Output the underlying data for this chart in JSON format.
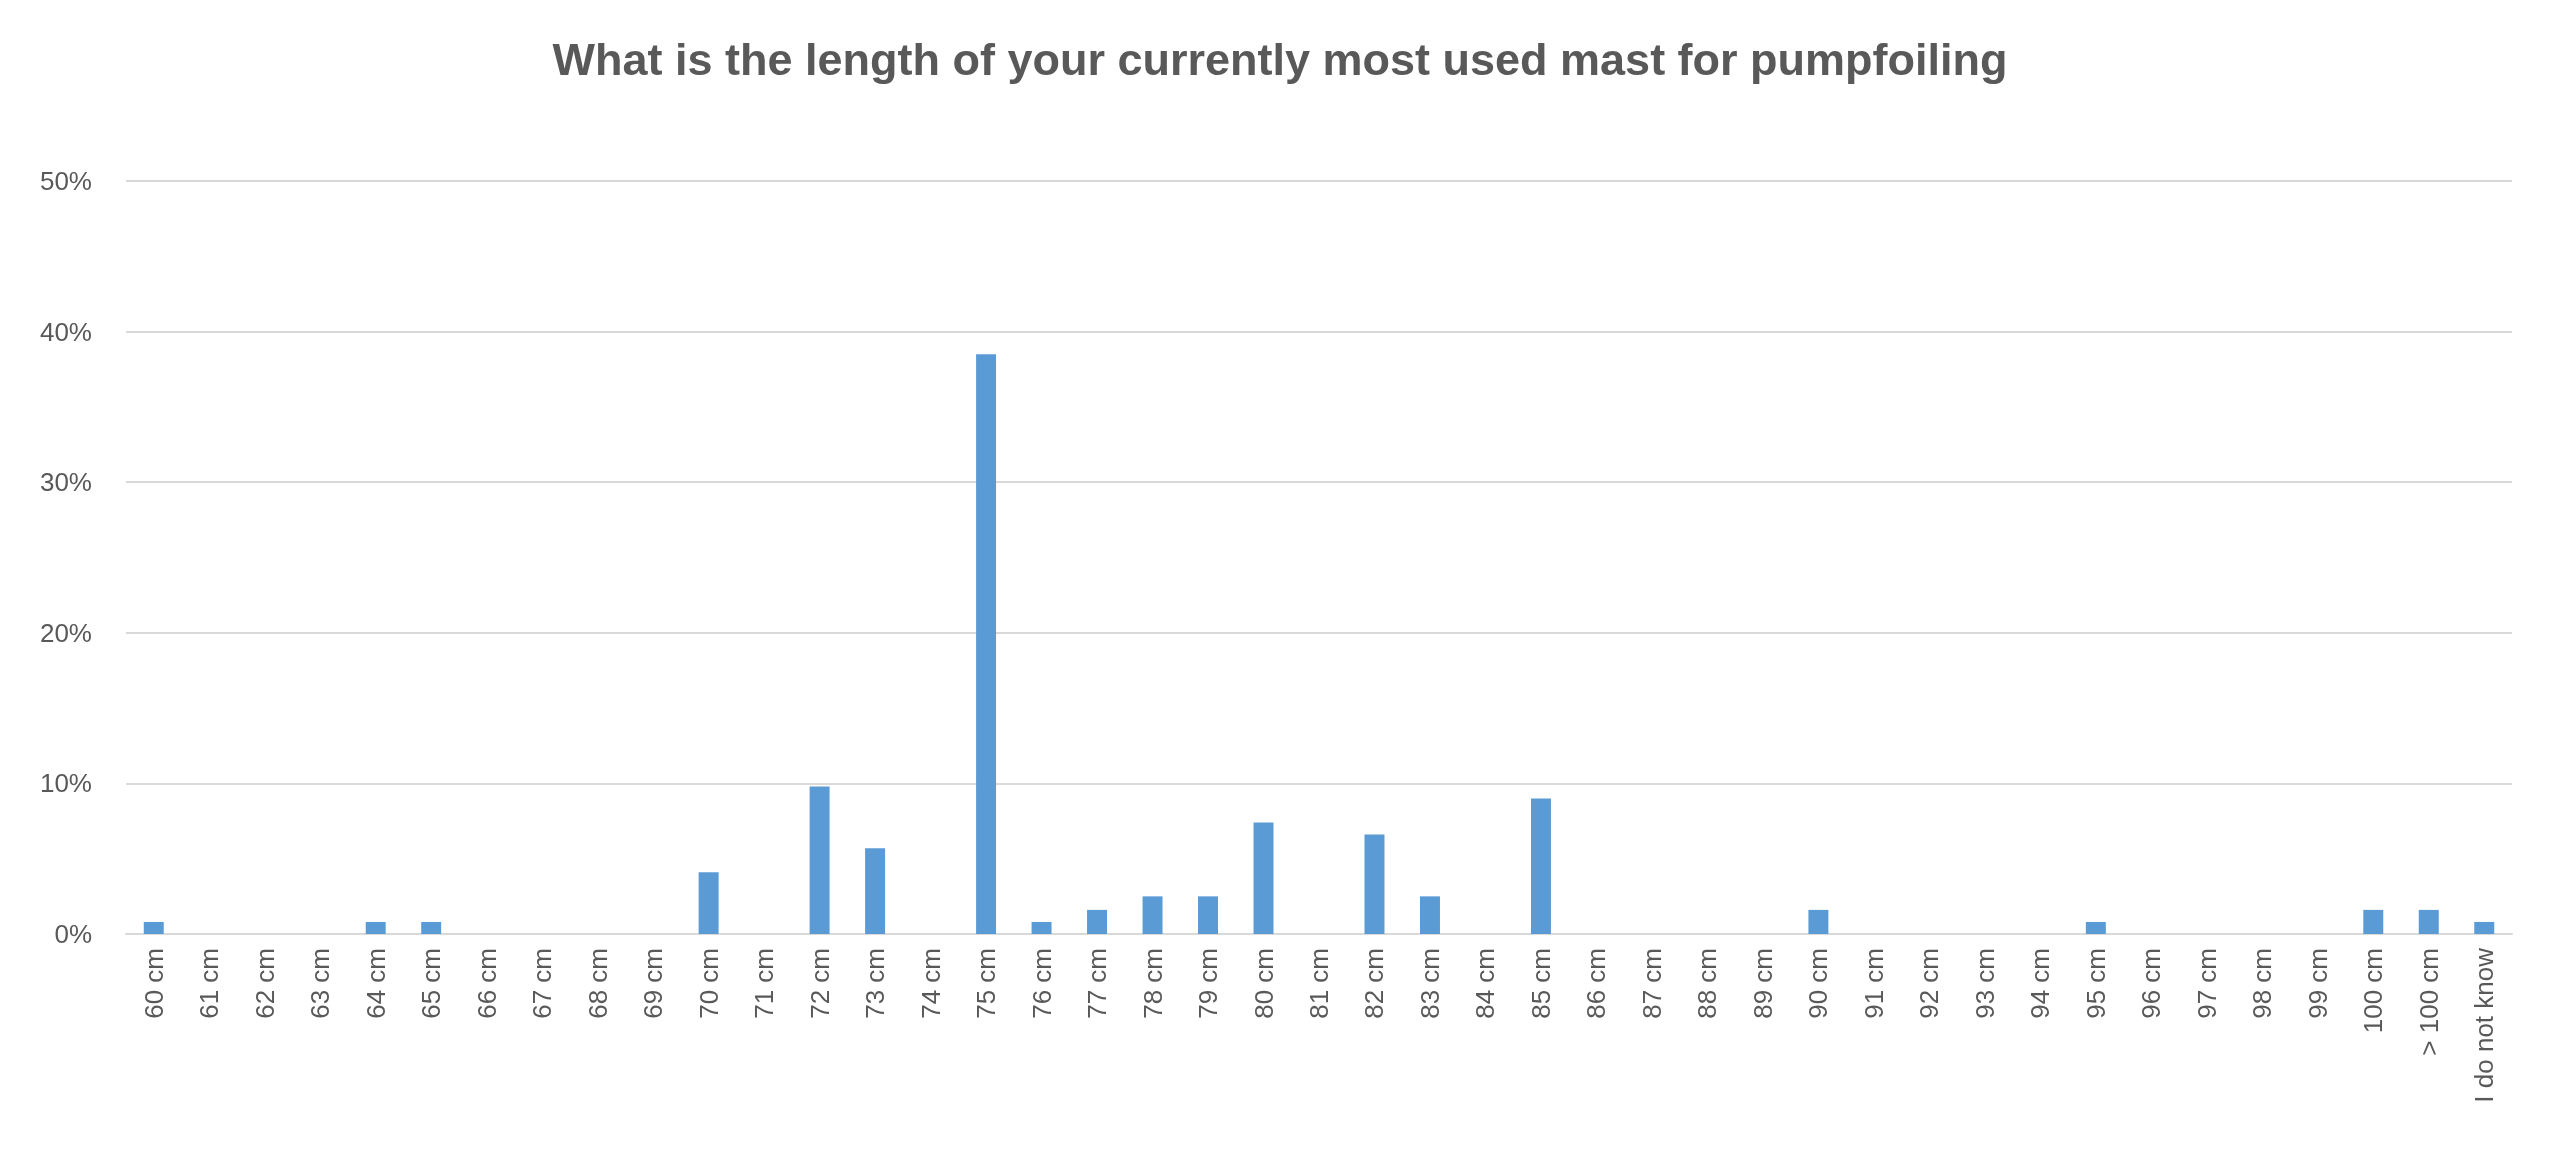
{
  "chart_data": {
    "type": "bar",
    "title": "What is the length of your currently most used mast for pumpfoiling",
    "categories": [
      "60 cm",
      "61 cm",
      "62 cm",
      "63 cm",
      "64 cm",
      "65 cm",
      "66 cm",
      "67 cm",
      "68 cm",
      "69 cm",
      "70 cm",
      "71 cm",
      "72 cm",
      "73 cm",
      "74 cm",
      "75 cm",
      "76 cm",
      "77 cm",
      "78 cm",
      "79 cm",
      "80 cm",
      "81 cm",
      "82 cm",
      "83 cm",
      "84 cm",
      "85 cm",
      "86 cm",
      "87 cm",
      "88 cm",
      "89 cm",
      "90 cm",
      "91 cm",
      "92 cm",
      "93 cm",
      "94 cm",
      "95 cm",
      "96 cm",
      "97 cm",
      "98 cm",
      "99 cm",
      "100 cm",
      "> 100 cm",
      "I do not know"
    ],
    "values": [
      0.8,
      0,
      0,
      0,
      0.8,
      0.8,
      0,
      0,
      0,
      0,
      4.1,
      0,
      9.8,
      5.7,
      0,
      38.5,
      0.8,
      1.6,
      2.5,
      2.5,
      7.4,
      0,
      6.6,
      2.5,
      0,
      9.0,
      0,
      0,
      0,
      0,
      1.6,
      0,
      0,
      0,
      0,
      0.8,
      0,
      0,
      0,
      0,
      1.6,
      1.6,
      0.8
    ],
    "color": "#5b9bd5",
    "ylim": [
      0,
      50
    ],
    "yticks": [
      {
        "value": 0,
        "label": "0%"
      },
      {
        "value": 10,
        "label": "10%"
      },
      {
        "value": 20,
        "label": "20%"
      },
      {
        "value": 30,
        "label": "30%"
      },
      {
        "value": 40,
        "label": "40%"
      },
      {
        "value": 50,
        "label": "50%"
      }
    ],
    "grid": "y"
  }
}
